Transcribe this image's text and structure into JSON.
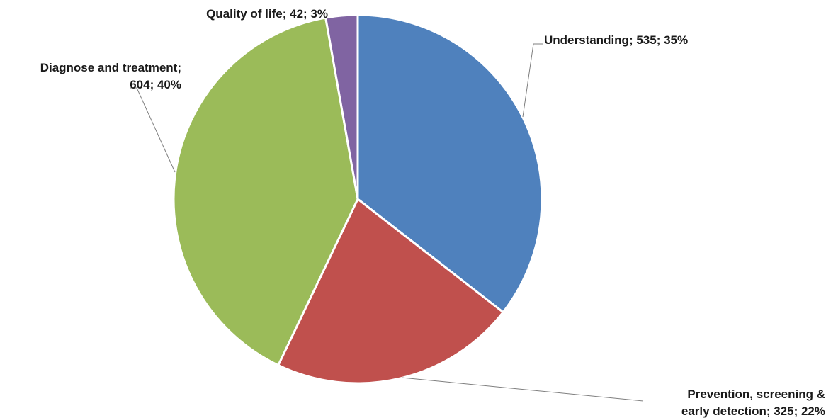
{
  "chart_data": {
    "type": "pie",
    "title": "",
    "slices": [
      {
        "label": "Understanding",
        "value": 535,
        "percent": 35,
        "color": "#4F81BD",
        "label_lines": [
          "Understanding; 535; 35%"
        ]
      },
      {
        "label": "Prevention, screening & early detection",
        "value": 325,
        "percent": 22,
        "color": "#C0504D",
        "label_lines": [
          "Prevention, screening &",
          "early detection; 325; 22%"
        ]
      },
      {
        "label": "Diagnose and treatment",
        "value": 604,
        "percent": 40,
        "color": "#9BBB59",
        "label_lines": [
          "Diagnose and treatment;",
          "604; 40%"
        ]
      },
      {
        "label": "Quality of life",
        "value": 42,
        "percent": 3,
        "color": "#8064A2",
        "label_lines": [
          "Quality of life; 42; 3%"
        ]
      }
    ],
    "legend": "none",
    "start_angle": "12 o'clock",
    "direction": "clockwise"
  }
}
